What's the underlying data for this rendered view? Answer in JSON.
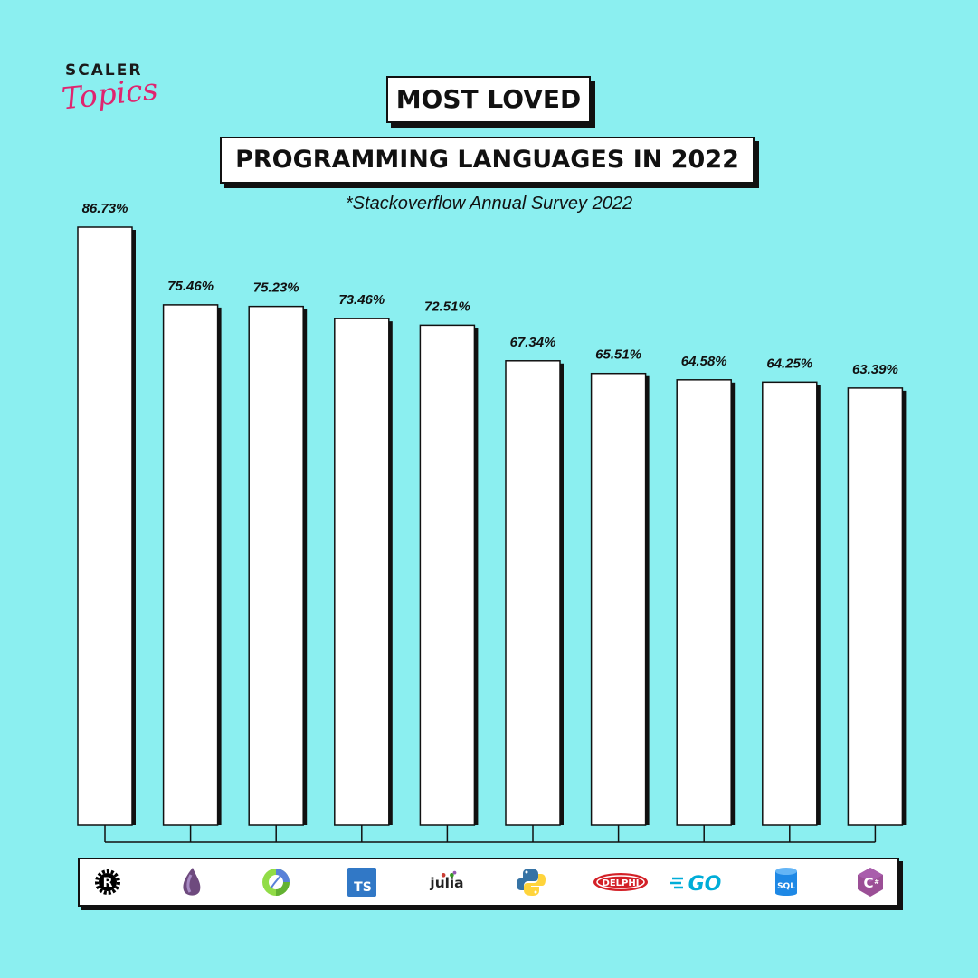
{
  "brand": {
    "line1": "SCALER",
    "line2": "Topics",
    "accent": "#e0246f"
  },
  "title": {
    "line1": "MOST LOVED",
    "line2": "PROGRAMMING LANGUAGES IN 2022"
  },
  "subtitle": "*Stackoverflow Annual Survey 2022",
  "colors": {
    "background": "#8beff0",
    "bar": "#ffffff",
    "outline": "#111111"
  },
  "icons": [
    {
      "name": "rust-icon",
      "label": "Rust"
    },
    {
      "name": "elixir-icon",
      "label": "Elixir"
    },
    {
      "name": "clojure-icon",
      "label": "Clojure"
    },
    {
      "name": "typescript-icon",
      "label": "TS"
    },
    {
      "name": "julia-icon",
      "label": "julia"
    },
    {
      "name": "python-icon",
      "label": "Python"
    },
    {
      "name": "delphi-icon",
      "label": "DELPHI"
    },
    {
      "name": "go-icon",
      "label": "GO"
    },
    {
      "name": "sql-icon",
      "label": "SQL"
    },
    {
      "name": "csharp-icon",
      "label": "C#"
    }
  ],
  "chart_data": {
    "type": "bar",
    "title": "MOST LOVED PROGRAMMING LANGUAGES IN 2022",
    "categories": [
      "Rust",
      "Elixir",
      "Clojure",
      "TypeScript",
      "Julia",
      "Python",
      "Delphi",
      "Go",
      "SQL",
      "C#"
    ],
    "values": [
      86.73,
      75.46,
      75.23,
      73.46,
      72.51,
      67.34,
      65.51,
      64.58,
      64.25,
      63.39
    ],
    "value_labels": [
      "86.73%",
      "75.46%",
      "75.23%",
      "73.46%",
      "72.51%",
      "67.34%",
      "65.51%",
      "64.58%",
      "64.25%",
      "63.39%"
    ],
    "xlabel": "",
    "ylabel": "",
    "grid": false
  }
}
